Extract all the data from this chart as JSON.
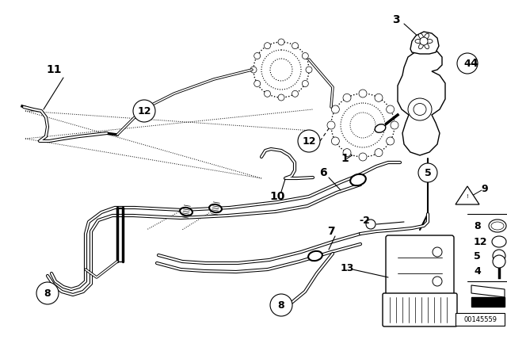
{
  "bg_color": "#ffffff",
  "fig_width": 6.4,
  "fig_height": 4.48,
  "dpi": 100,
  "part_number": "00145559",
  "lc": "#000000",
  "lw": 1.2,
  "lw_thin": 0.7,
  "lw_thick": 2.0
}
